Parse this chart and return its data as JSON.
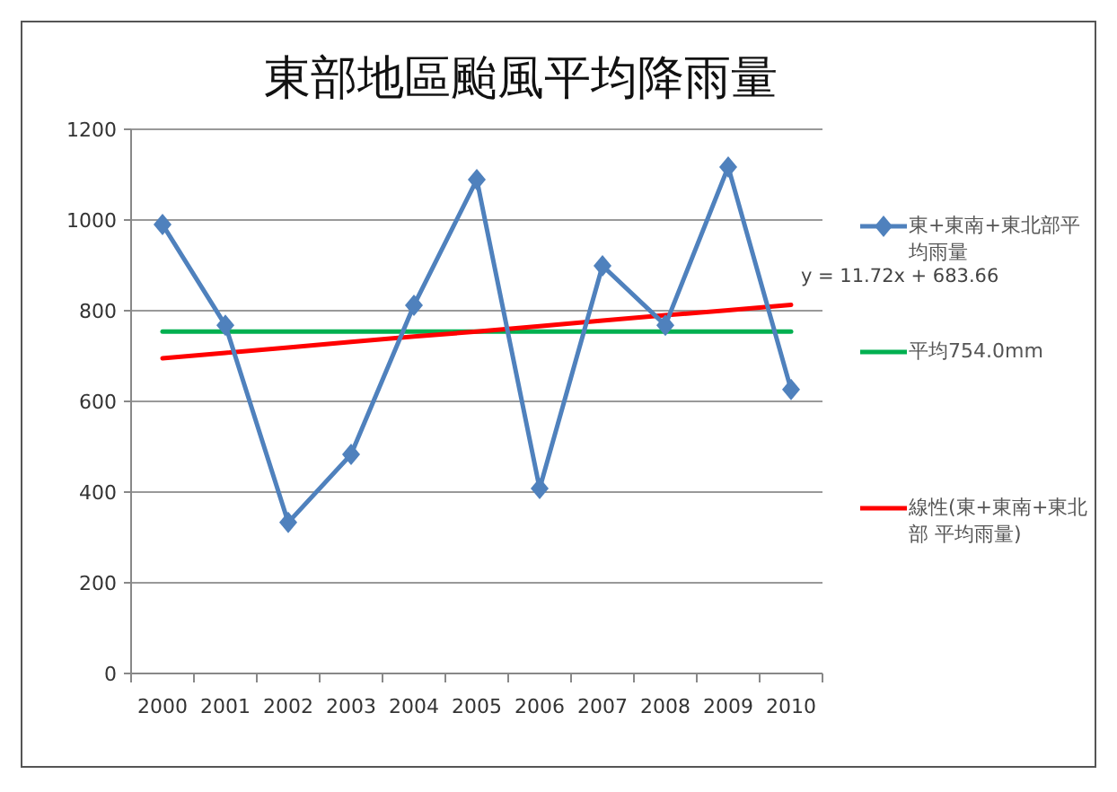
{
  "chart_data": {
    "type": "line",
    "title": "東部地區颱風平均降雨量",
    "categories": [
      "2000",
      "2001",
      "2002",
      "2003",
      "2004",
      "2005",
      "2006",
      "2007",
      "2008",
      "2009",
      "2010"
    ],
    "series": [
      {
        "name": "東+東南+東北部平均雨量",
        "color": "#4f81bd",
        "marker": "diamond",
        "values": [
          990,
          768,
          333,
          483,
          812,
          1089,
          408,
          899,
          768,
          1117,
          626
        ]
      },
      {
        "name": "平均754.0mm",
        "color": "#00b050",
        "marker": "none",
        "values": [
          754,
          754,
          754,
          754,
          754,
          754,
          754,
          754,
          754,
          754,
          754
        ]
      },
      {
        "name": "線性(東+東南+東北部 平均雨量)",
        "color": "#ff0000",
        "marker": "none",
        "values": [
          695,
          707,
          719,
          731,
          743,
          754,
          766,
          778,
          790,
          801,
          813
        ]
      }
    ],
    "annotations": [
      "y = 11.72x + 683.66"
    ],
    "ylim": [
      0,
      1200
    ],
    "yticks": [
      0,
      200,
      400,
      600,
      800,
      1000,
      1200
    ],
    "grid": "y",
    "legend": "right"
  }
}
